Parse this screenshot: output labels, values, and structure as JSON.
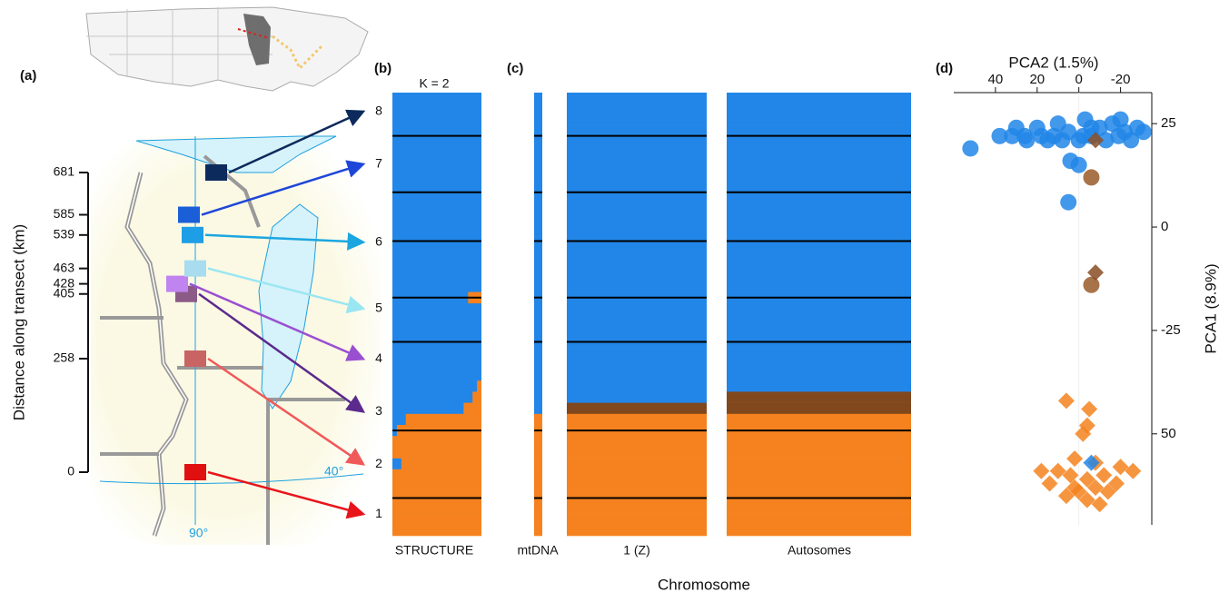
{
  "panel_labels": [
    "(a)",
    "(b)",
    "(c)",
    "(d)"
  ],
  "map": {
    "y_axis_label": "Distance along transect (km)",
    "ylim": [
      0,
      681
    ],
    "yticks": [
      0,
      258,
      405,
      428,
      463,
      539,
      585,
      681
    ],
    "lat_label": "40°",
    "lon_label": "90°",
    "population_colors": [
      "#e8141b",
      "#f0595a",
      "#5b2a8c",
      "#9a4fd0",
      "#9ae6f2",
      "#1ba6e0",
      "#1e46d8",
      "#0d2a5c"
    ],
    "square_colors": [
      "#e01010",
      "#c86464",
      "#8c5a86",
      "#c084f0",
      "#a8dcee",
      "#1e9ee6",
      "#1a5ed8",
      "#0d2a5c"
    ]
  },
  "structure": {
    "title": "K = 2",
    "label": "STRUCTURE",
    "population_labels": [
      "1",
      "2",
      "3",
      "4",
      "5",
      "6",
      "7",
      "8"
    ],
    "population_boundaries": [
      3.9,
      9,
      13.4,
      18.5,
      22.5,
      30.5,
      36.6
    ],
    "orange_fraction": [
      0,
      0,
      0,
      0,
      0,
      0,
      0,
      0,
      0,
      0,
      0,
      0,
      0,
      0,
      0,
      0,
      0,
      0,
      0.15,
      0,
      0,
      0,
      0,
      0,
      0,
      0,
      0.05,
      0.1,
      0.2,
      0.85,
      0.95,
      1,
      1,
      0.9,
      1,
      1,
      1,
      1,
      1,
      1
    ]
  },
  "genotype": {
    "xlabel": "Chromosome",
    "columns": [
      "mtDNA",
      "1 (Z)",
      "Autosomes"
    ],
    "state_colors": [
      "#2186e8",
      "#80481c",
      "#f5821f"
    ],
    "mtdna_rows": [
      0,
      0,
      0,
      0,
      0,
      0,
      0,
      0,
      0,
      0,
      0,
      0,
      0,
      0,
      0,
      0,
      0,
      0,
      0,
      0,
      0,
      0,
      0,
      0,
      0,
      0,
      0,
      0,
      0,
      2,
      2,
      2,
      2,
      2,
      2,
      2,
      2,
      2,
      2,
      2
    ],
    "z_rows": [
      0,
      0,
      0,
      0,
      0,
      0,
      0,
      0,
      0,
      0,
      0,
      0,
      0,
      0,
      0,
      0,
      0,
      0,
      0,
      0,
      0,
      0,
      0,
      0,
      0,
      0,
      0,
      0,
      1,
      2,
      2,
      2,
      2,
      2,
      2,
      2,
      2,
      2,
      2,
      2
    ],
    "autosome_rows": [
      0,
      0,
      0,
      0,
      0,
      0,
      0,
      0,
      0,
      0,
      0,
      0,
      0,
      0,
      0,
      0,
      0,
      0,
      0,
      0,
      0,
      0,
      0,
      0,
      0,
      0,
      0,
      1,
      1,
      2,
      2,
      2,
      2,
      2,
      2,
      2,
      2,
      2,
      2,
      2
    ]
  },
  "pca": {
    "xlabel": "PCA2 (1.5%)",
    "ylabel": "PCA1 (8.9%)",
    "xlim": [
      60,
      -35
    ],
    "xticks": [
      40,
      20,
      0,
      -20
    ],
    "ylim": [
      32.5,
      -72
    ],
    "yticks": [
      25,
      0,
      -25,
      {
        "value": -50,
        "label": "50"
      }
    ],
    "series": [
      {
        "marker": "circle",
        "color": "#2186e8",
        "x": [
          30,
          20,
          12,
          5,
          -2,
          -10,
          -16,
          -22,
          -28,
          25,
          15,
          8,
          0,
          -6,
          -13,
          -19,
          -25,
          -31,
          38,
          32,
          18,
          4,
          0,
          5,
          52,
          -6,
          10,
          -3,
          -20,
          26
        ],
        "y": [
          24,
          24,
          22,
          23,
          22,
          24,
          25,
          23,
          24,
          21,
          21,
          21,
          21,
          22,
          21,
          22,
          21,
          23,
          22,
          22,
          22,
          16,
          15,
          6,
          19,
          24,
          25,
          26,
          26,
          22
        ]
      },
      {
        "marker": "circle",
        "color": "#9a5a2a",
        "x": [
          -6,
          -6
        ],
        "y": [
          12,
          -14
        ]
      },
      {
        "marker": "diamond",
        "color": "#8a4e24",
        "x": [
          -8,
          -8
        ],
        "y": [
          -11,
          21
        ]
      },
      {
        "marker": "diamond",
        "color": "#f5821f",
        "x": [
          6,
          -5,
          -4,
          -2,
          2,
          -8,
          10,
          18,
          4,
          -4,
          -12,
          -18,
          -26,
          -8,
          -14,
          14,
          0,
          -4,
          6,
          -10,
          2,
          -20
        ],
        "y": [
          -42,
          -44,
          -48,
          -50,
          -56,
          -57,
          -59,
          -59,
          -60,
          -61,
          -60,
          -62,
          -59,
          -63,
          -64,
          -62,
          -64,
          -66,
          -65,
          -67,
          -63,
          -58
        ]
      },
      {
        "marker": "diamond",
        "color": "#2186e8",
        "x": [
          -6
        ],
        "y": [
          -57
        ]
      }
    ]
  }
}
